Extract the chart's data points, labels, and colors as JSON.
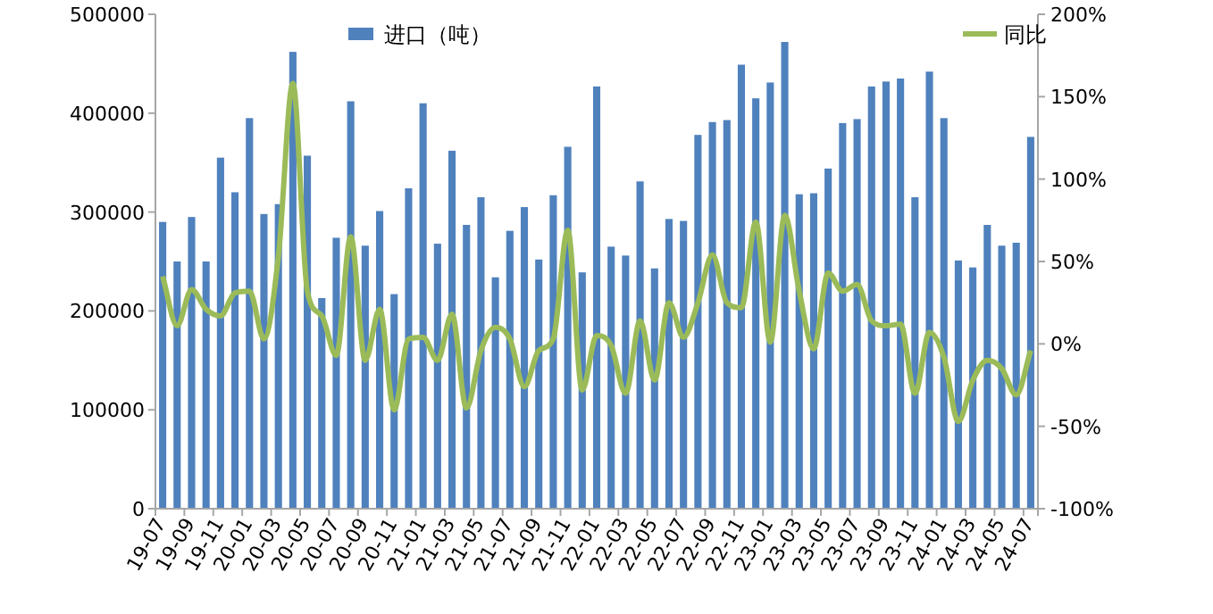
{
  "chart_data": {
    "type": "bar",
    "categories": [
      "19-07",
      null,
      "19-09",
      null,
      "19-11",
      null,
      "20-01",
      null,
      "20-03",
      null,
      "20-05",
      null,
      "20-07",
      null,
      "20-09",
      null,
      "20-11",
      null,
      "21-01",
      null,
      "21-03",
      null,
      "21-05",
      null,
      "21-07",
      null,
      "21-09",
      null,
      "21-11",
      null,
      "22-01",
      null,
      "22-03",
      null,
      "22-05",
      null,
      "22-07",
      null,
      "22-09",
      null,
      "22-11",
      null,
      "23-01",
      null,
      "23-03",
      null,
      "23-05",
      null,
      "23-07",
      null,
      "23-09",
      null,
      "23-11",
      null,
      "24-01",
      null,
      "24-03",
      null,
      "24-05",
      null,
      "24-07"
    ],
    "series": [
      {
        "name": "进口（吨）",
        "color": "#4f81bd",
        "values": [
          290000,
          250000,
          295000,
          250000,
          355000,
          320000,
          395000,
          298000,
          308000,
          462000,
          357000,
          213000,
          274000,
          412000,
          266000,
          301000,
          217000,
          324000,
          410000,
          268000,
          362000,
          287000,
          315000,
          234000,
          281000,
          305000,
          252000,
          317000,
          366000,
          239000,
          427000,
          265000,
          256000,
          331000,
          243000,
          293000,
          291000,
          378000,
          391000,
          393000,
          449000,
          415000,
          431000,
          472000,
          318000,
          319000,
          344000,
          390000,
          394000,
          427000,
          432000,
          435000,
          315000,
          442000,
          395000,
          251000,
          244000,
          287000,
          266000,
          269000,
          376000
        ]
      },
      {
        "name": "同比",
        "type": "line",
        "axis": "y2",
        "color": "#9bbb59",
        "values": [
          41,
          11,
          33,
          21,
          17,
          31,
          32,
          3,
          53,
          158,
          32,
          17,
          -7,
          65,
          -10,
          21,
          -40,
          3,
          4,
          -10,
          18,
          -39,
          -4,
          10,
          3,
          -26,
          -4,
          3,
          69,
          -28,
          5,
          -1,
          -30,
          14,
          -22,
          25,
          4,
          25,
          54,
          25,
          22,
          74,
          1,
          78,
          32,
          -3,
          43,
          32,
          36,
          14,
          11,
          12,
          -30,
          7,
          -8,
          -47,
          -22,
          -10,
          -15,
          -31,
          -4
        ]
      }
    ],
    "ylim": [
      0,
      500000
    ],
    "yticks": [
      0,
      100000,
      200000,
      300000,
      400000,
      500000
    ],
    "y2lim": [
      -100,
      200
    ],
    "y2ticks": [
      {
        "value": -100,
        "label": "-100%"
      },
      {
        "value": -50,
        "label": "-50%"
      },
      {
        "value": 0,
        "label": "0%"
      },
      {
        "value": 50,
        "label": "50%"
      },
      {
        "value": 100,
        "label": "100%"
      },
      {
        "value": 150,
        "label": "150%"
      },
      {
        "value": 200,
        "label": "200%"
      }
    ],
    "legend": "top",
    "grid": false
  }
}
